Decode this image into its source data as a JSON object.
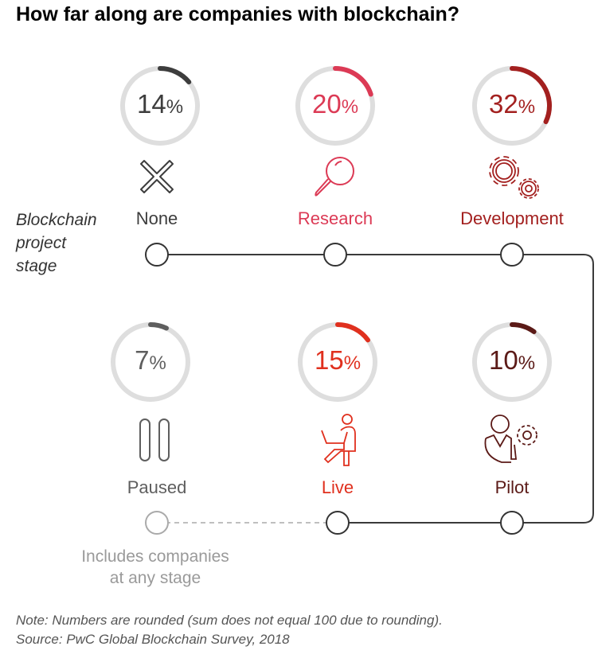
{
  "title": "How far along are companies with blockchain?",
  "stage_label": [
    "Blockchain",
    "project",
    "stage"
  ],
  "includes_note": [
    "Includes companies",
    "at any stage"
  ],
  "note": "Note: Numbers are rounded (sum does not equal 100 due to rounding).",
  "source": "Source: PwC Global Blockchain Survey, 2018",
  "track_color": "#dedede",
  "chart_data": {
    "type": "gauge",
    "title": "How far along are companies with blockchain?",
    "unit": "%",
    "categories": [
      "None",
      "Research",
      "Development",
      "Paused",
      "Live",
      "Pilot"
    ],
    "values": [
      14,
      20,
      32,
      7,
      15,
      10
    ],
    "labels": [
      "14",
      "20",
      "32",
      "7",
      "15",
      "10"
    ],
    "icons": [
      "x-icon",
      "magnifier-icon",
      "gears-icon",
      "pause-icon",
      "person-laptop-icon",
      "person-gear-icon"
    ],
    "colors": [
      "#3d3d3d",
      "#dc3a55",
      "#a3201f",
      "#5e5e5e",
      "#e0301e",
      "#5b1a17"
    ],
    "max": 100
  }
}
